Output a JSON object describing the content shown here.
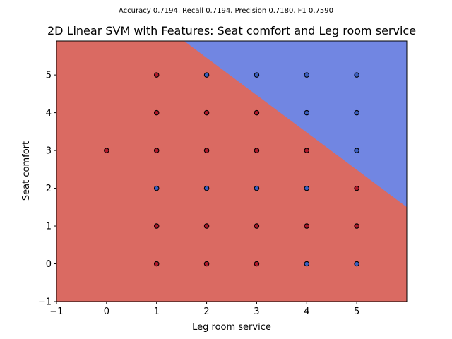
{
  "chart_data": {
    "type": "scatter",
    "suptitle": "Accuracy 0.7194, Recall 0.7194, Precision 0.7180, F1 0.7590",
    "title": "2D Linear SVM with Features: Seat comfort and Leg room service",
    "xlabel": "Leg room service",
    "ylabel": "Seat comfort",
    "xlim": [
      -1,
      6
    ],
    "ylim": [
      -1,
      5.9
    ],
    "xticks": [
      -1,
      0,
      1,
      2,
      3,
      4,
      5
    ],
    "yticks": [
      -1,
      0,
      1,
      2,
      3,
      4,
      5
    ],
    "decision_boundary": {
      "points": [
        [
          1.55,
          5.9
        ],
        [
          6.0,
          1.5
        ]
      ]
    },
    "region_colors": {
      "class_0": "#da6a62",
      "class_1": "#7186e2"
    },
    "point_colors": {
      "class_0": "#b2182b",
      "class_1": "#3b5fc0"
    },
    "points": [
      {
        "x": 0,
        "y": 3,
        "class": 0
      },
      {
        "x": 1,
        "y": 0,
        "class": 0
      },
      {
        "x": 1,
        "y": 1,
        "class": 0
      },
      {
        "x": 1,
        "y": 2,
        "class": 1
      },
      {
        "x": 1,
        "y": 3,
        "class": 0
      },
      {
        "x": 1,
        "y": 4,
        "class": 0
      },
      {
        "x": 1,
        "y": 5,
        "class": 0
      },
      {
        "x": 2,
        "y": 0,
        "class": 0
      },
      {
        "x": 2,
        "y": 1,
        "class": 0
      },
      {
        "x": 2,
        "y": 2,
        "class": 1
      },
      {
        "x": 2,
        "y": 3,
        "class": 0
      },
      {
        "x": 2,
        "y": 4,
        "class": 0
      },
      {
        "x": 2,
        "y": 5,
        "class": 1
      },
      {
        "x": 3,
        "y": 0,
        "class": 0
      },
      {
        "x": 3,
        "y": 1,
        "class": 0
      },
      {
        "x": 3,
        "y": 2,
        "class": 1
      },
      {
        "x": 3,
        "y": 3,
        "class": 0
      },
      {
        "x": 3,
        "y": 4,
        "class": 0
      },
      {
        "x": 3,
        "y": 5,
        "class": 1
      },
      {
        "x": 4,
        "y": 0,
        "class": 1
      },
      {
        "x": 4,
        "y": 1,
        "class": 0
      },
      {
        "x": 4,
        "y": 2,
        "class": 1
      },
      {
        "x": 4,
        "y": 3,
        "class": 0
      },
      {
        "x": 4,
        "y": 4,
        "class": 1
      },
      {
        "x": 4,
        "y": 5,
        "class": 1
      },
      {
        "x": 5,
        "y": 0,
        "class": 1
      },
      {
        "x": 5,
        "y": 1,
        "class": 0
      },
      {
        "x": 5,
        "y": 2,
        "class": 0
      },
      {
        "x": 5,
        "y": 3,
        "class": 1
      },
      {
        "x": 5,
        "y": 4,
        "class": 1
      },
      {
        "x": 5,
        "y": 5,
        "class": 1
      }
    ]
  }
}
